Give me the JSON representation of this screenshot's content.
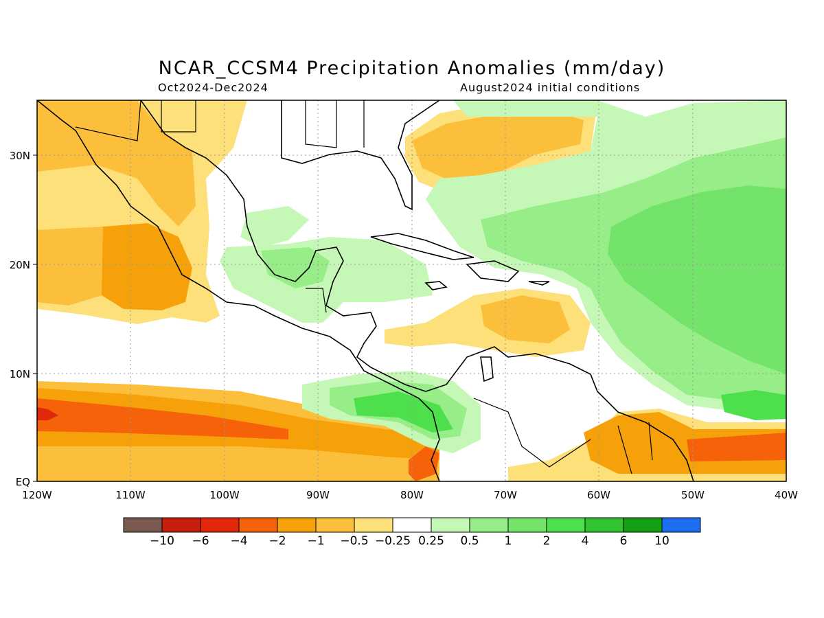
{
  "title": "NCAR_CCSM4 Precipitation Anomalies (mm/day)",
  "period": "Oct2024-Dec2024",
  "init": "August2024 initial conditions",
  "lat_labels": [
    "30N",
    "20N",
    "10N",
    "EQ"
  ],
  "lon_labels": [
    "120W",
    "110W",
    "100W",
    "90W",
    "80W",
    "70W",
    "60W",
    "50W",
    "40W"
  ],
  "colorbar": {
    "colors": [
      "#7a5a4e",
      "#c81e0e",
      "#e2280a",
      "#f5620a",
      "#f7a10a",
      "#fbbf3c",
      "#fde07a",
      "#ffffff",
      "#c5f8b6",
      "#97ee88",
      "#73e36a",
      "#4ee04c",
      "#32c430",
      "#13a015",
      "#1d6ef0"
    ],
    "labels": [
      "-10",
      "-6",
      "-4",
      "-2",
      "-1",
      "-0.5",
      "-0.25",
      "0.25",
      "0.5",
      "1",
      "2",
      "4",
      "6",
      "10"
    ]
  }
}
